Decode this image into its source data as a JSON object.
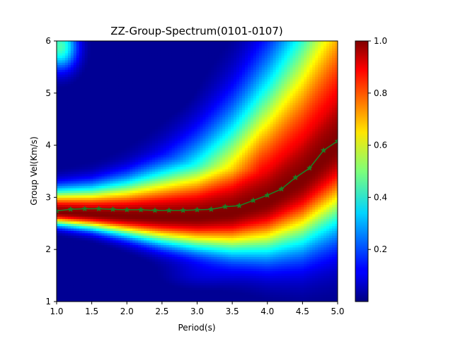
{
  "chart_data": {
    "type": "heatmap",
    "title": "ZZ-Group-Spectrum(0101-0107)",
    "xlabel": "Period(s)",
    "ylabel": "Group Vel(Km/s)",
    "xlim": [
      1.0,
      5.0
    ],
    "ylim": [
      1,
      6
    ],
    "x_ticks": [
      "1.0",
      "1.5",
      "2.0",
      "2.5",
      "3.0",
      "3.5",
      "4.0",
      "4.5",
      "5.0"
    ],
    "y_ticks": [
      "1",
      "2",
      "3",
      "4",
      "5",
      "6"
    ],
    "colormap": "jet",
    "colorbar": {
      "range": [
        0,
        1.0
      ],
      "ticks": [
        "0.2",
        "0.4",
        "0.6",
        "0.8",
        "1.0"
      ]
    },
    "ridge_profile": {
      "period": [
        1.0,
        1.5,
        2.0,
        2.5,
        3.0,
        3.5,
        4.0,
        4.5,
        5.0
      ],
      "peak_velocity": [
        2.72,
        2.68,
        2.64,
        2.62,
        2.62,
        2.7,
        2.92,
        3.35,
        4.0
      ],
      "width": [
        0.22,
        0.26,
        0.34,
        0.45,
        0.55,
        0.7,
        0.9,
        1.15,
        1.4
      ]
    },
    "series": [
      {
        "marker": "star",
        "color": "#1e7d24",
        "x": [
          1.0,
          1.2,
          1.4,
          1.6,
          1.8,
          2.0,
          2.2,
          2.4,
          2.6,
          2.8,
          3.0,
          3.2,
          3.4,
          3.6,
          3.8,
          4.0,
          4.2,
          4.4,
          4.6,
          4.8,
          5.0
        ],
        "y": [
          2.74,
          2.77,
          2.78,
          2.78,
          2.77,
          2.76,
          2.76,
          2.75,
          2.75,
          2.75,
          2.76,
          2.77,
          2.82,
          2.84,
          2.94,
          3.04,
          3.16,
          3.38,
          3.56,
          3.9,
          4.08
        ]
      }
    ]
  }
}
